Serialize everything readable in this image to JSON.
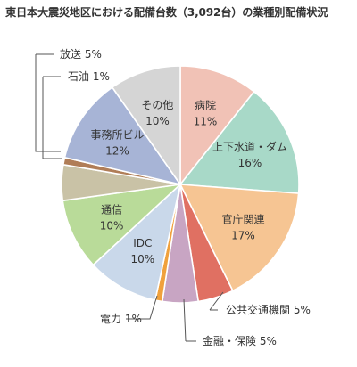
{
  "title": "東日本大震災地区における配備台数（3,092台）の業種別配備状況",
  "chart_data": {
    "type": "pie",
    "title": "東日本大震災地区における配備台数（3,092台）の業種別配備状況",
    "start_angle_deg": 0,
    "direction": "clockwise",
    "slices": [
      {
        "label": "病院",
        "value": 11,
        "display": "11%",
        "color": "#f1c2b6",
        "label_placement": "inside"
      },
      {
        "label": "上下水道・ダム",
        "value": 16,
        "display": "16%",
        "color": "#a8d9c8",
        "label_placement": "inside"
      },
      {
        "label": "官庁関連",
        "value": 17,
        "display": "17%",
        "color": "#f6c593",
        "label_placement": "inside"
      },
      {
        "label": "公共交通機関",
        "value": 5,
        "display": "5%",
        "color": "#e07062",
        "label_placement": "outside"
      },
      {
        "label": "金融・保険",
        "value": 5,
        "display": "5%",
        "color": "#c8a5c3",
        "label_placement": "outside"
      },
      {
        "label": "電力",
        "value": 1,
        "display": "1%",
        "color": "#f0a13c",
        "label_placement": "outside"
      },
      {
        "label": "IDC",
        "value": 10,
        "display": "10%",
        "color": "#c9d8ea",
        "label_placement": "inside"
      },
      {
        "label": "通信",
        "value": 10,
        "display": "10%",
        "color": "#b9db99",
        "label_placement": "inside"
      },
      {
        "label": "放送",
        "value": 5,
        "display": "5%",
        "color": "#c9c2a6",
        "label_placement": "outside"
      },
      {
        "label": "石油",
        "value": 1,
        "display": "1%",
        "color": "#b07d57",
        "label_placement": "outside"
      },
      {
        "label": "事務所ビル",
        "value": 12,
        "display": "12%",
        "color": "#a7b4d6",
        "label_placement": "inside"
      },
      {
        "label": "その他",
        "value": 10,
        "display": "10%",
        "color": "#d5d5d5",
        "label_placement": "inside"
      }
    ]
  }
}
